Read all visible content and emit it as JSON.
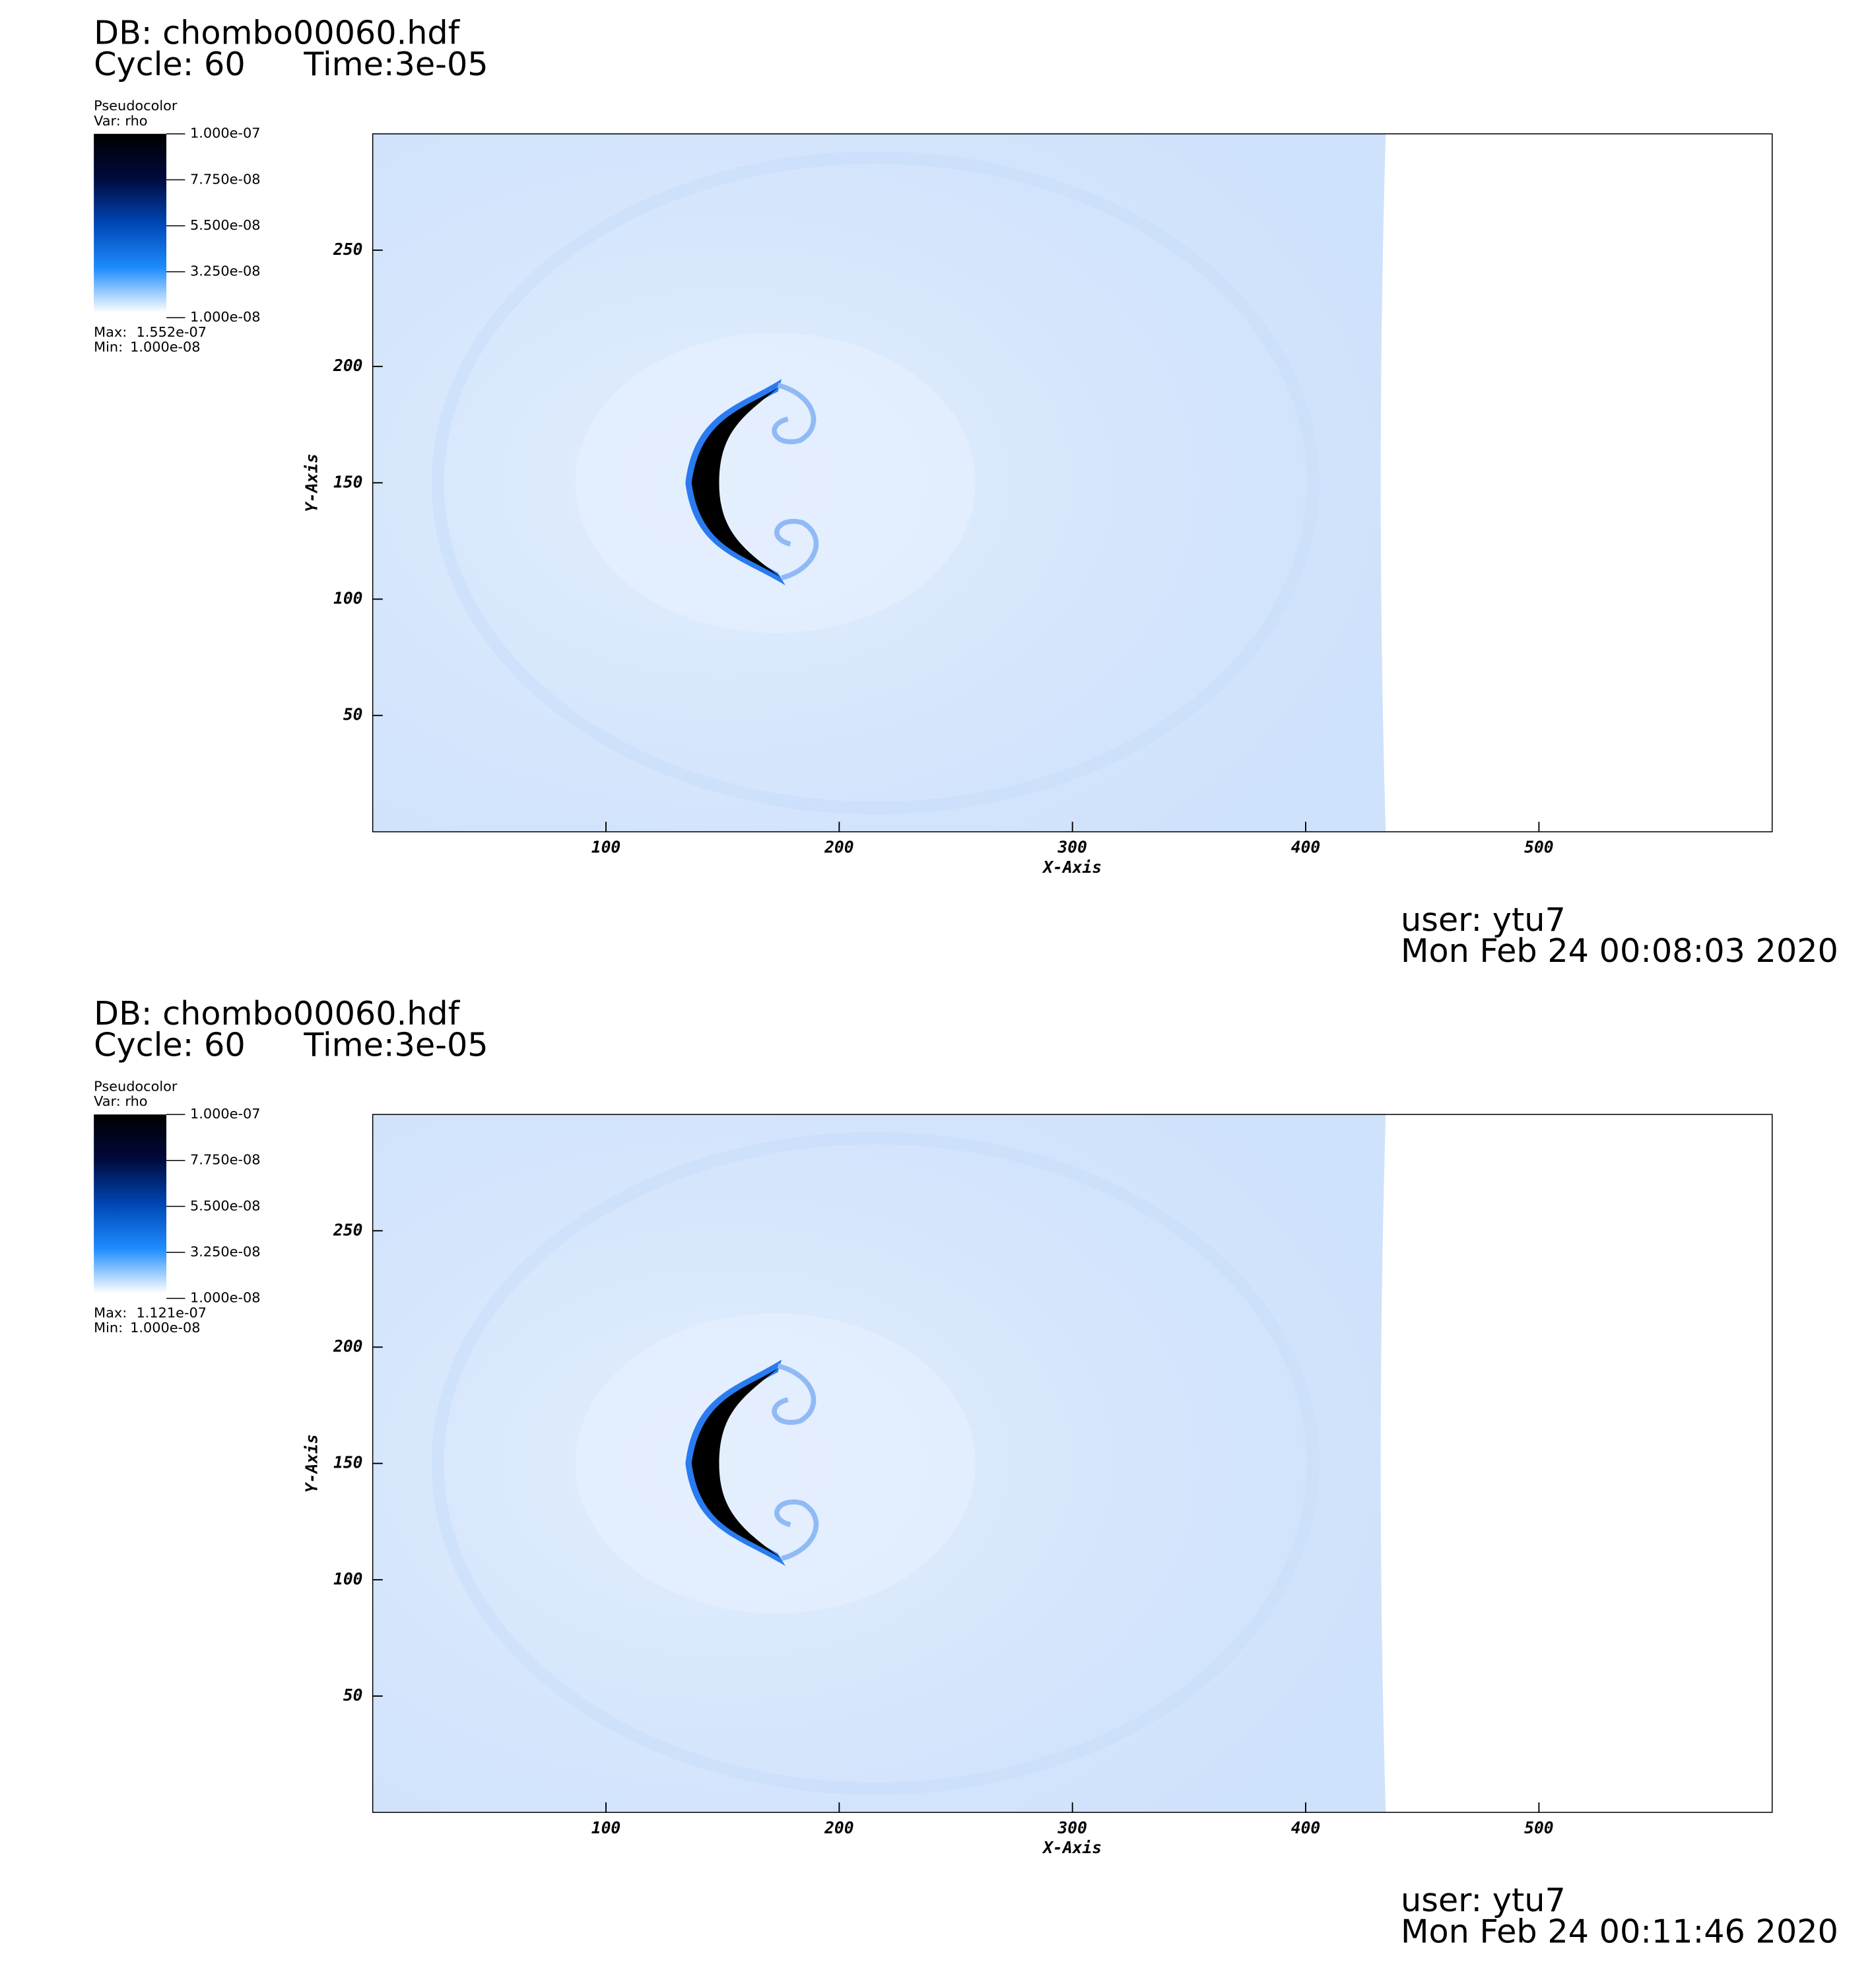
{
  "chart_data": [
    {
      "type": "pseudocolor",
      "db": "DB: chombo00060.hdf",
      "cycle": "Cycle: 60",
      "time": "Time:3e-05",
      "legend_title": "Pseudocolor",
      "var": "Var: rho",
      "clim": [
        1e-08,
        1e-07
      ],
      "cticks": [
        {
          "value": 1e-07,
          "label": "1.000e-07"
        },
        {
          "value": 7.75e-08,
          "label": "7.750e-08"
        },
        {
          "value": 5.5e-08,
          "label": "5.500e-08"
        },
        {
          "value": 3.25e-08,
          "label": "3.250e-08"
        },
        {
          "value": 1e-08,
          "label": "1.000e-08"
        }
      ],
      "max_label": "Max:",
      "max": {
        "value": 1.552e-07,
        "label": "1.552e-07"
      },
      "min_label": "Min:",
      "min": {
        "value": 1e-08,
        "label": "1.000e-08"
      },
      "xlim": [
        0,
        600
      ],
      "ylim": [
        0,
        300
      ],
      "xticks": [
        100,
        200,
        300,
        400,
        500
      ],
      "yticks": [
        50,
        100,
        150,
        200,
        250
      ],
      "xlabel": "X-Axis",
      "ylabel": "Y-Axis",
      "user": "user: ytu7",
      "date": "Mon Feb 24 00:08:03 2020"
    },
    {
      "type": "pseudocolor",
      "db": "DB: chombo00060.hdf",
      "cycle": "Cycle: 60",
      "time": "Time:3e-05",
      "legend_title": "Pseudocolor",
      "var": "Var: rho",
      "clim": [
        1e-08,
        1e-07
      ],
      "cticks": [
        {
          "value": 1e-07,
          "label": "1.000e-07"
        },
        {
          "value": 7.75e-08,
          "label": "7.750e-08"
        },
        {
          "value": 5.5e-08,
          "label": "5.500e-08"
        },
        {
          "value": 3.25e-08,
          "label": "3.250e-08"
        },
        {
          "value": 1e-08,
          "label": "1.000e-08"
        }
      ],
      "max_label": "Max:",
      "max": {
        "value": 1.121e-07,
        "label": "1.121e-07"
      },
      "min_label": "Min:",
      "min": {
        "value": 1e-08,
        "label": "1.000e-08"
      },
      "xlim": [
        0,
        600
      ],
      "ylim": [
        0,
        300
      ],
      "xticks": [
        100,
        200,
        300,
        400,
        500
      ],
      "yticks": [
        50,
        100,
        150,
        200,
        250
      ],
      "xlabel": "X-Axis",
      "ylabel": "Y-Axis",
      "user": "user: ytu7",
      "date": "Mon Feb 24 00:11:46 2020"
    }
  ]
}
